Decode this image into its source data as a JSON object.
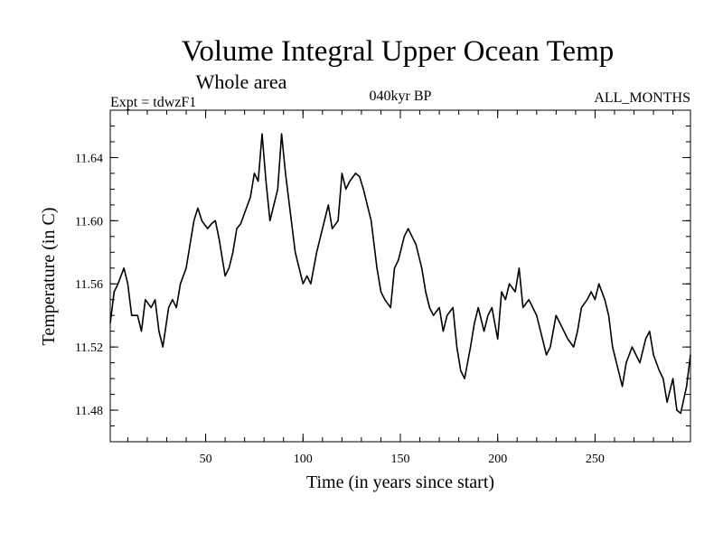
{
  "chart_data": {
    "type": "line",
    "title": "Volume Integral Upper Ocean Temp",
    "subtitle": "Whole area",
    "experiment": "Expt = tdwzF1",
    "period": "040kyr BP",
    "months": "ALL_MONTHS",
    "xlabel": "Time (in years since start)",
    "ylabel": "Temperature (in C)",
    "xlim": [
      1,
      299
    ],
    "ylim": [
      11.46,
      11.67
    ],
    "xticks": [
      50,
      100,
      150,
      200,
      250
    ],
    "yticks": [
      11.48,
      11.52,
      11.56,
      11.6,
      11.64
    ],
    "ytick_labels": [
      "11.48",
      "11.52",
      "11.56",
      "11.60",
      "11.64"
    ],
    "grid": false,
    "series": [
      {
        "name": "Temperature",
        "x": [
          1,
          3,
          5,
          8,
          10,
          12,
          15,
          17,
          19,
          22,
          24,
          26,
          28,
          31,
          33,
          35,
          37,
          40,
          42,
          44,
          46,
          48,
          51,
          53,
          55,
          57,
          60,
          62,
          64,
          66,
          68,
          70,
          73,
          75,
          77,
          79,
          81,
          83,
          85,
          87,
          89,
          91,
          93,
          96,
          98,
          100,
          102,
          104,
          107,
          109,
          111,
          113,
          115,
          118,
          120,
          122,
          124,
          127,
          129,
          131,
          133,
          135,
          138,
          140,
          142,
          145,
          147,
          149,
          152,
          154,
          156,
          158,
          161,
          163,
          165,
          167,
          170,
          172,
          174,
          177,
          179,
          181,
          183,
          186,
          188,
          190,
          193,
          195,
          197,
          200,
          202,
          204,
          206,
          209,
          211,
          213,
          216,
          218,
          220,
          223,
          225,
          227,
          230,
          232,
          234,
          236,
          239,
          241,
          243,
          246,
          248,
          250,
          252,
          255,
          257,
          259,
          262,
          264,
          266,
          269,
          271,
          273,
          276,
          278,
          280,
          283,
          285,
          287,
          290,
          292,
          294,
          297,
          299
        ],
        "values": [
          11.535,
          11.555,
          11.56,
          11.57,
          11.56,
          11.54,
          11.54,
          11.53,
          11.55,
          11.545,
          11.55,
          11.53,
          11.52,
          11.545,
          11.55,
          11.545,
          11.56,
          11.57,
          11.585,
          11.6,
          11.608,
          11.6,
          11.595,
          11.598,
          11.6,
          11.588,
          11.565,
          11.57,
          11.58,
          11.595,
          11.598,
          11.605,
          11.615,
          11.63,
          11.625,
          11.655,
          11.625,
          11.6,
          11.61,
          11.62,
          11.655,
          11.63,
          11.61,
          11.58,
          11.57,
          11.56,
          11.565,
          11.56,
          11.58,
          11.59,
          11.6,
          11.61,
          11.595,
          11.6,
          11.63,
          11.62,
          11.625,
          11.63,
          11.628,
          11.62,
          11.61,
          11.6,
          11.57,
          11.555,
          11.55,
          11.545,
          11.57,
          11.575,
          11.59,
          11.595,
          11.59,
          11.585,
          11.57,
          11.555,
          11.545,
          11.54,
          11.545,
          11.53,
          11.54,
          11.545,
          11.52,
          11.505,
          11.5,
          11.52,
          11.535,
          11.545,
          11.53,
          11.54,
          11.545,
          11.525,
          11.555,
          11.55,
          11.56,
          11.555,
          11.57,
          11.545,
          11.55,
          11.545,
          11.54,
          11.525,
          11.515,
          11.52,
          11.54,
          11.535,
          11.53,
          11.525,
          11.52,
          11.53,
          11.545,
          11.55,
          11.555,
          11.55,
          11.56,
          11.55,
          11.54,
          11.52,
          11.505,
          11.495,
          11.51,
          11.52,
          11.515,
          11.51,
          11.525,
          11.53,
          11.515,
          11.505,
          11.5,
          11.485,
          11.5,
          11.48,
          11.478,
          11.495,
          11.515
        ]
      }
    ]
  }
}
